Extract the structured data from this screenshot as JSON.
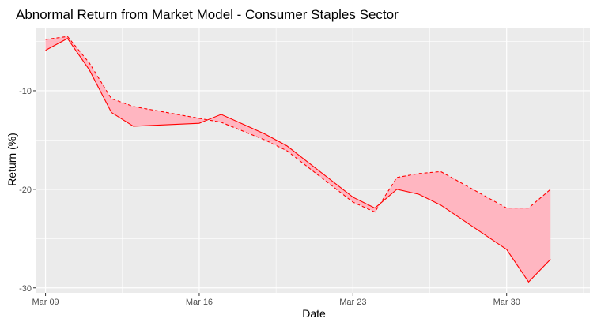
{
  "chart_data": {
    "type": "area",
    "title": "Abnormal Return from Market Model - Consumer Staples Sector",
    "xlabel": "Date",
    "ylabel": "Return (%)",
    "x_tick_labels": [
      "Mar 09",
      "Mar 16",
      "Mar 23",
      "Mar 30"
    ],
    "x_tick_dates": [
      "2020-03-09",
      "2020-03-16",
      "2020-03-23",
      "2020-03-30"
    ],
    "y_tick_labels": [
      "-10",
      "-20",
      "-30"
    ],
    "y_tick_values": [
      -10,
      -20,
      -30
    ],
    "xlim": [
      "2020-03-08T14:00",
      "2020-04-02T19:00"
    ],
    "ylim": [
      -30.5,
      -3.6
    ],
    "grid": true,
    "legend": "none",
    "series": [
      {
        "line_style": "solid",
        "color": "#ff0000",
        "x": [
          "2020-03-09",
          "2020-03-10",
          "2020-03-11",
          "2020-03-12",
          "2020-03-13",
          "2020-03-16",
          "2020-03-17",
          "2020-03-18",
          "2020-03-19",
          "2020-03-20",
          "2020-03-23",
          "2020-03-24",
          "2020-03-25",
          "2020-03-26",
          "2020-03-27",
          "2020-03-30",
          "2020-03-31",
          "2020-04-01"
        ],
        "values": [
          -5.9,
          -4.7,
          -7.9,
          -12.2,
          -13.6,
          -13.3,
          -12.4,
          -13.4,
          -14.4,
          -15.6,
          -20.8,
          -21.9,
          -20.0,
          -20.5,
          -21.6,
          -26.1,
          -29.4,
          -27.1
        ]
      },
      {
        "line_style": "dashed",
        "color": "#ff0000",
        "x": [
          "2020-03-09",
          "2020-03-10",
          "2020-03-11",
          "2020-03-12",
          "2020-03-13",
          "2020-03-16",
          "2020-03-17",
          "2020-03-18",
          "2020-03-19",
          "2020-03-20",
          "2020-03-23",
          "2020-03-24",
          "2020-03-25",
          "2020-03-26",
          "2020-03-27",
          "2020-03-30",
          "2020-03-31",
          "2020-04-01"
        ],
        "values": [
          -4.8,
          -4.5,
          -7.2,
          -10.8,
          -11.6,
          -12.8,
          -13.2,
          -14.1,
          -15.0,
          -16.1,
          -21.3,
          -22.3,
          -18.8,
          -18.4,
          -18.2,
          -21.9,
          -21.9,
          -20.0
        ]
      }
    ],
    "fill_color": "#ffb6c1",
    "panel_color": "#ebebeb",
    "grid_color": "#ffffff"
  }
}
